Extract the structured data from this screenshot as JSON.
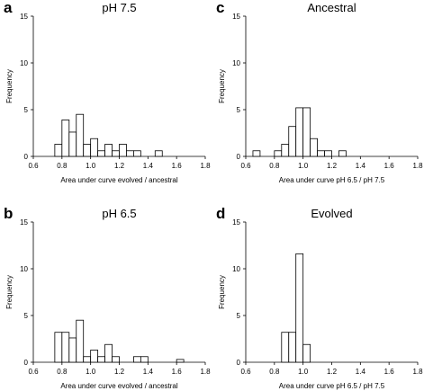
{
  "chart_data": [
    {
      "type": "bar",
      "panel": "a",
      "title": "pH 7.5",
      "xlabel": "Area under curve evolved / ancestral",
      "ylabel": "Frequency",
      "xlim": [
        0.6,
        1.8
      ],
      "ylim": [
        0,
        15
      ],
      "xticks": [
        "0.6",
        "0.8",
        "1.0",
        "1.2",
        "1.4",
        "1.6",
        "1.8"
      ],
      "yticks": [
        "0",
        "5",
        "10",
        "15"
      ],
      "bin_width": 0.05,
      "bins": [
        {
          "x": 0.75,
          "value": 1.3
        },
        {
          "x": 0.8,
          "value": 3.9
        },
        {
          "x": 0.85,
          "value": 2.6
        },
        {
          "x": 0.9,
          "value": 4.5
        },
        {
          "x": 0.95,
          "value": 1.3
        },
        {
          "x": 1.0,
          "value": 1.9
        },
        {
          "x": 1.05,
          "value": 0.6
        },
        {
          "x": 1.1,
          "value": 1.3
        },
        {
          "x": 1.15,
          "value": 0.6
        },
        {
          "x": 1.2,
          "value": 1.3
        },
        {
          "x": 1.25,
          "value": 0.6
        },
        {
          "x": 1.3,
          "value": 0.6
        },
        {
          "x": 1.45,
          "value": 0.6
        }
      ]
    },
    {
      "type": "bar",
      "panel": "c",
      "title": "Ancestral",
      "xlabel": "Area under curve pH 6.5 / pH 7.5",
      "ylabel": "Frequency",
      "xlim": [
        0.6,
        1.8
      ],
      "ylim": [
        0,
        15
      ],
      "xticks": [
        "0.6",
        "0.8",
        "1.0",
        "1.2",
        "1.4",
        "1.6",
        "1.8"
      ],
      "yticks": [
        "0",
        "5",
        "10",
        "15"
      ],
      "bin_width": 0.05,
      "bins": [
        {
          "x": 0.65,
          "value": 0.6
        },
        {
          "x": 0.8,
          "value": 0.6
        },
        {
          "x": 0.85,
          "value": 1.3
        },
        {
          "x": 0.9,
          "value": 3.2
        },
        {
          "x": 0.95,
          "value": 5.2
        },
        {
          "x": 1.0,
          "value": 5.2
        },
        {
          "x": 1.05,
          "value": 1.9
        },
        {
          "x": 1.1,
          "value": 0.6
        },
        {
          "x": 1.15,
          "value": 0.6
        },
        {
          "x": 1.25,
          "value": 0.6
        }
      ]
    },
    {
      "type": "bar",
      "panel": "b",
      "title": "pH 6.5",
      "xlabel": "Area under curve evolved / ancestral",
      "ylabel": "Frequency",
      "xlim": [
        0.6,
        1.8
      ],
      "ylim": [
        0,
        15
      ],
      "xticks": [
        "0.6",
        "0.8",
        "1.0",
        "1.2",
        "1.4",
        "1.6",
        "1.8"
      ],
      "yticks": [
        "0",
        "5",
        "10",
        "15"
      ],
      "bin_width": 0.05,
      "bins": [
        {
          "x": 0.75,
          "value": 3.2
        },
        {
          "x": 0.8,
          "value": 3.2
        },
        {
          "x": 0.85,
          "value": 2.6
        },
        {
          "x": 0.9,
          "value": 4.5
        },
        {
          "x": 0.95,
          "value": 0.6
        },
        {
          "x": 1.0,
          "value": 1.3
        },
        {
          "x": 1.05,
          "value": 0.6
        },
        {
          "x": 1.1,
          "value": 1.9
        },
        {
          "x": 1.15,
          "value": 0.6
        },
        {
          "x": 1.3,
          "value": 0.6
        },
        {
          "x": 1.35,
          "value": 0.6
        },
        {
          "x": 1.6,
          "value": 0.3
        }
      ]
    },
    {
      "type": "bar",
      "panel": "d",
      "title": "Evolved",
      "xlabel": "Area under curve pH 6.5 / pH 7.5",
      "ylabel": "Frequency",
      "xlim": [
        0.6,
        1.8
      ],
      "ylim": [
        0,
        15
      ],
      "xticks": [
        "0.6",
        "0.8",
        "1.0",
        "1.2",
        "1.4",
        "1.6",
        "1.8"
      ],
      "yticks": [
        "0",
        "5",
        "10",
        "15"
      ],
      "bin_width": 0.05,
      "bins": [
        {
          "x": 0.85,
          "value": 3.2
        },
        {
          "x": 0.9,
          "value": 3.2
        },
        {
          "x": 0.95,
          "value": 11.6
        },
        {
          "x": 1.0,
          "value": 1.9
        }
      ]
    }
  ]
}
